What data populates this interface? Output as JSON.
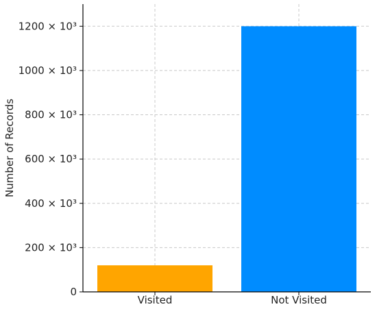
{
  "chart_data": {
    "type": "bar",
    "categories": [
      "Visited",
      "Not Visited"
    ],
    "values": [
      120000,
      1200000
    ],
    "colors": [
      "#ffa500",
      "#008cff"
    ],
    "title": "",
    "xlabel": "",
    "ylabel": "Number of Records",
    "ylim": [
      0,
      1300000
    ],
    "yticks": [
      0,
      200000,
      400000,
      600000,
      800000,
      1000000,
      1200000
    ],
    "ytick_labels": [
      "0",
      "200 × 10³",
      "400 × 10³",
      "600 × 10³",
      "800 × 10³",
      "1000 × 10³",
      "1200 × 10³"
    ],
    "grid": true,
    "legend": "none"
  }
}
